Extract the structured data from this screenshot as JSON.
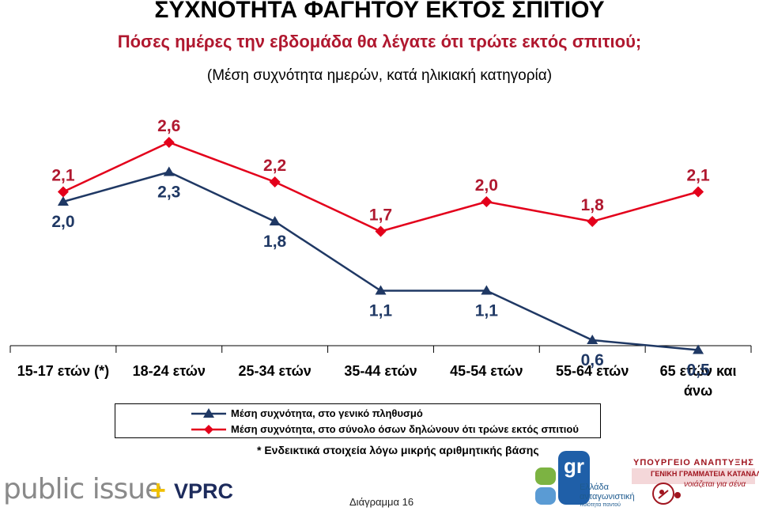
{
  "header": {
    "title": "ΣΥΧΝΟΤΗΤΑ ΦΑΓΗΤΟΥ ΕΚΤΟΣ ΣΠΙΤΙΟΥ",
    "question": "Πόσες ημέρες την εβδομάδα θα λέγατε ότι τρώτε εκτός σπιτιού;",
    "subtitle": "(Μέση συχνότητα ημερών, κατά ηλικιακή κατηγορία)"
  },
  "chart_data": {
    "type": "line",
    "categories": [
      "15-17 ετών (*)",
      "18-24 ετών",
      "25-34 ετών",
      "35-44 ετών",
      "45-54 ετών",
      "55-64 ετών",
      "65 ετών και άνω"
    ],
    "category_lines": [
      [
        "15-17 ετών (*)"
      ],
      [
        "18-24 ετών"
      ],
      [
        "25-34 ετών"
      ],
      [
        "35-44 ετών"
      ],
      [
        "45-54 ετών"
      ],
      [
        "55-64 ετών"
      ],
      [
        "65 ετών και",
        "άνω"
      ]
    ],
    "series": [
      {
        "name": "Μέση συχνότητα, στο γενικό πληθυσμό",
        "values": [
          2.0,
          2.3,
          1.8,
          1.1,
          1.1,
          0.6,
          0.5
        ],
        "labels": [
          "2,0",
          "2,3",
          "1,8",
          "1,1",
          "1,1",
          "0,6",
          "0,5"
        ],
        "color": "#1f3864",
        "marker": "triangle"
      },
      {
        "name": "Μέση συχνότητα, στο σύνολο όσων δηλώνουν ότι τρώνε εκτός σπιτιού",
        "values": [
          2.1,
          2.6,
          2.2,
          1.7,
          2.0,
          1.8,
          2.1
        ],
        "labels": [
          "2,1",
          "2,6",
          "2,2",
          "1,7",
          "2,0",
          "1,8",
          "2,1"
        ],
        "color": "#e3001b",
        "marker": "diamond"
      }
    ],
    "ylim": [
      0,
      3
    ],
    "legend": "bottom",
    "grid": false
  },
  "footnote": "* Ενδεικτικά στοιχεία λόγω μικρής αριθμητικής βάσης",
  "footer": {
    "logo_left": "public issue",
    "logo_plus": "+",
    "logo_vprc": "VPRC",
    "diagram_label": "Διάγραμμα 16",
    "gr_logo_mark": "gr",
    "gr_logo_line1": "Ελλάδα",
    "gr_logo_line2": "ανταγωνιστική",
    "gr_logo_line3": "ποιότητα παντού",
    "ministry_line1": "ΥΠΟΥΡΓΕΙΟ ΑΝΑΠΤΥΞΗΣ",
    "ministry_line2": "ΓΕΝΙΚΗ ΓΡΑΜΜΑΤΕΙΑ ΚΑΤΑΝΑΛΩΤΗ",
    "ministry_line3": "νοιάζεται για σένα"
  },
  "colors": {
    "title": "#000000",
    "question": "#b0182f",
    "series_general": "#1f3864",
    "series_eaters": "#e3001b"
  }
}
